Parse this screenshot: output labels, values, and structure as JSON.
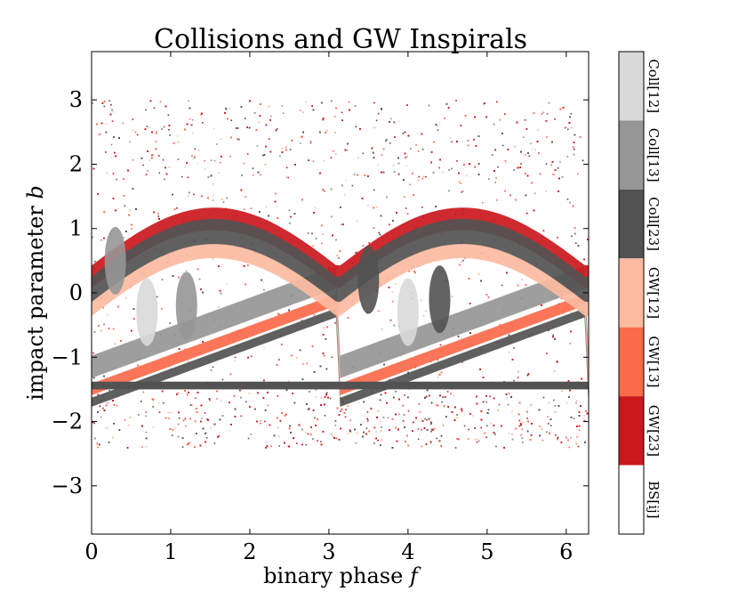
{
  "chart_data": {
    "type": "heatmap",
    "title": "Collisions and GW Inspirals",
    "xlabel": "binary phase",
    "xlabel_symbol": "f",
    "ylabel": "impact parameter",
    "ylabel_symbol": "b",
    "xlim": [
      0,
      6.283
    ],
    "ylim": [
      -3.75,
      3.75
    ],
    "xticks": [
      0,
      1,
      2,
      3,
      4,
      5,
      6
    ],
    "yticks": [
      -3,
      -2,
      -1,
      0,
      1,
      2,
      3
    ],
    "xtick_labels": [
      "0",
      "1",
      "2",
      "3",
      "4",
      "5",
      "6"
    ],
    "ytick_labels": [
      "−3",
      "−2",
      "−1",
      "0",
      "1",
      "2",
      "3"
    ],
    "grid": false,
    "colorbar": {
      "position": "right",
      "categories": [
        {
          "label": "Coll[12]",
          "color": "#d9d9d9"
        },
        {
          "label": "Coll[13]",
          "color": "#969696"
        },
        {
          "label": "Coll[23]",
          "color": "#525252"
        },
        {
          "label": "GW[12]",
          "color": "#fcbba1"
        },
        {
          "label": "GW[13]",
          "color": "#fb6a4a"
        },
        {
          "label": "GW[23]",
          "color": "#cb181d"
        },
        {
          "label": "BS[ij]",
          "color": "#ffffff"
        }
      ]
    },
    "scatter_region": {
      "b_min": -2.4,
      "b_max": 3.0
    }
  }
}
